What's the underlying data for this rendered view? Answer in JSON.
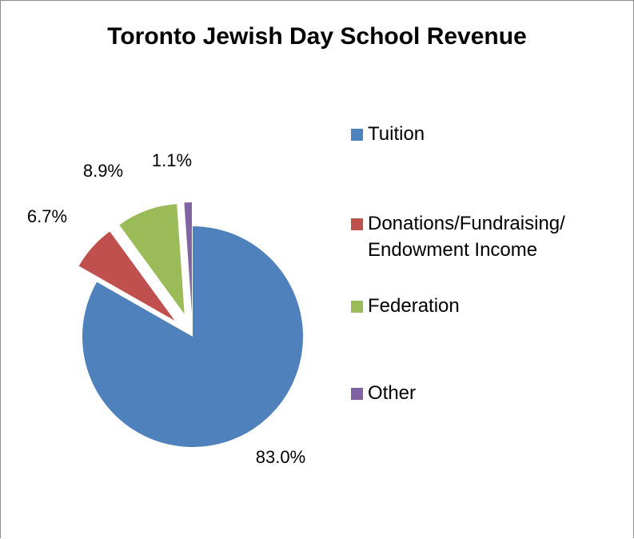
{
  "chart_data": {
    "type": "pie",
    "title": "Toronto Jewish Day School Revenue",
    "slices": [
      {
        "name": "Tuition",
        "value": 83.0,
        "label": "83.0%",
        "color": "#4f81bd"
      },
      {
        "name": "Donations/Fundraising/\nEndowment Income",
        "value": 6.7,
        "label": "6.7%",
        "color": "#c0504d"
      },
      {
        "name": "Federation",
        "value": 8.9,
        "label": "8.9%",
        "color": "#9bbb59"
      },
      {
        "name": "Other",
        "value": 1.1,
        "label": "1.1%",
        "color": "#8064a2"
      }
    ],
    "legend_position": "right",
    "exploded": [
      "Donations/Fundraising/\nEndowment Income",
      "Federation",
      "Other"
    ]
  }
}
